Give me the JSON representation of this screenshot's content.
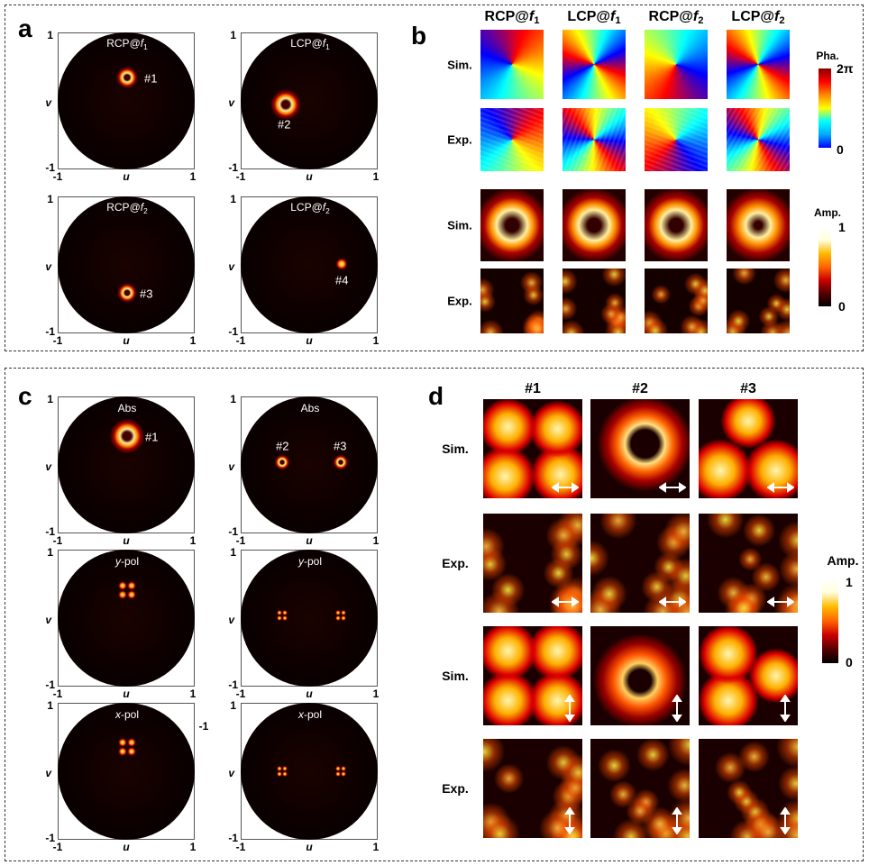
{
  "panel_a": {
    "label": "a",
    "axis": {
      "max": "1",
      "min": "-1",
      "u": "u",
      "v": "v"
    },
    "plots": [
      {
        "title": {
          "prefix": "RCP@",
          "var": "f",
          "sub": "1"
        },
        "markers": [
          "#1"
        ]
      },
      {
        "title": {
          "prefix": "LCP@",
          "var": "f",
          "sub": "1"
        },
        "markers": [
          "#2"
        ]
      },
      {
        "title": {
          "prefix": "RCP@",
          "var": "f",
          "sub": "2"
        },
        "markers": [
          "#3"
        ]
      },
      {
        "title": {
          "prefix": "LCP@",
          "var": "f",
          "sub": "2"
        },
        "markers": [
          "#4"
        ]
      }
    ]
  },
  "panel_b": {
    "label": "b",
    "columns": [
      {
        "prefix": "RCP@",
        "var": "f",
        "sub": "1"
      },
      {
        "prefix": "LCP@",
        "var": "f",
        "sub": "1"
      },
      {
        "prefix": "RCP@",
        "var": "f",
        "sub": "2"
      },
      {
        "prefix": "LCP@",
        "var": "f",
        "sub": "2"
      }
    ],
    "rows": [
      "Sim.",
      "Exp.",
      "Sim.",
      "Exp."
    ],
    "phase_colorbar": {
      "label": "Pha.",
      "max": "2π",
      "min": "0"
    },
    "amp_colorbar": {
      "label": "Amp.",
      "max": "1",
      "min": "0"
    }
  },
  "panel_c": {
    "label": "c",
    "axis": {
      "max": "1",
      "min": "-1",
      "u": "u",
      "v": "v"
    },
    "plots": [
      {
        "title": {
          "text": "Abs"
        },
        "markers": [
          "#1"
        ]
      },
      {
        "title": {
          "text": "Abs"
        },
        "markers": [
          "#2",
          "#3"
        ]
      },
      {
        "title": {
          "var": "y",
          "text": "-pol"
        },
        "markers": []
      },
      {
        "title": {
          "var": "y",
          "text": "-pol"
        },
        "markers": []
      },
      {
        "title": {
          "var": "x",
          "text": "-pol"
        },
        "markers": []
      },
      {
        "title": {
          "var": "x",
          "text": "-pol"
        },
        "markers": []
      }
    ],
    "stray_tick": "-1"
  },
  "panel_d": {
    "label": "d",
    "columns": [
      "#1",
      "#2",
      "#3"
    ],
    "rows": [
      "Sim.",
      "Exp.",
      "Sim.",
      "Exp."
    ],
    "colorbar": {
      "label": "Amp.",
      "max": "1",
      "min": "0"
    }
  }
}
